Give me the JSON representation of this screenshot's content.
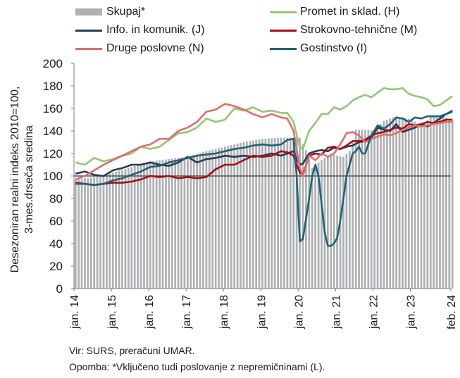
{
  "legend": [
    {
      "key": "skupaj",
      "label": "Skupaj*",
      "color": "#aeb0b3",
      "kind": "bar"
    },
    {
      "key": "promet",
      "label": "Promet in sklad. (H)",
      "color": "#93c674",
      "kind": "line"
    },
    {
      "key": "info",
      "label": "Info. in komunik. (J)",
      "color": "#273a55",
      "kind": "line"
    },
    {
      "key": "strok",
      "label": "Strokovno-tehnične (M)",
      "color": "#a60d15",
      "kind": "line"
    },
    {
      "key": "druge",
      "label": "Druge poslovne (N)",
      "color": "#e06d6e",
      "kind": "line"
    },
    {
      "key": "gost",
      "label": "Gostinstvo (I)",
      "color": "#1f6178",
      "kind": "line"
    }
  ],
  "ylabel_line1": "Desezoniran realni indeks 2010=100,",
  "ylabel_line2": "3-mes.drseča sredina",
  "footer": {
    "source": "Vir: SURS, preračuni UMAR.",
    "note": "Opomba: *Vključeno tudi poslovanje z nepremičninami (L)."
  },
  "chart_data": {
    "type": "bar+line",
    "x_start": "jan. 14",
    "x_end": "feb. 24",
    "x_ticks": [
      "jan. 14",
      "jan. 15",
      "jan. 16",
      "jan. 17",
      "jan. 18",
      "jan. 19",
      "jan. 20",
      "jan. 21",
      "jan. 22",
      "jan. 23",
      "feb. 24"
    ],
    "ylim": [
      0,
      200
    ],
    "yticks": [
      0,
      20,
      40,
      60,
      80,
      100,
      120,
      140,
      160,
      180,
      200
    ],
    "reference_line": 100,
    "bar_series": {
      "name": "Skupaj*",
      "anchors": [
        [
          0,
          97
        ],
        [
          6,
          99
        ],
        [
          12,
          103
        ],
        [
          18,
          108
        ],
        [
          24,
          113
        ],
        [
          30,
          115
        ],
        [
          36,
          117
        ],
        [
          42,
          122
        ],
        [
          48,
          126
        ],
        [
          54,
          130
        ],
        [
          60,
          133
        ],
        [
          66,
          134
        ],
        [
          72,
          134
        ],
        [
          74,
          123
        ],
        [
          76,
          107
        ],
        [
          78,
          112
        ],
        [
          80,
          116
        ],
        [
          82,
          120
        ],
        [
          84,
          118
        ],
        [
          86,
          117
        ],
        [
          88,
          122
        ],
        [
          90,
          141
        ],
        [
          93,
          141
        ],
        [
          96,
          140
        ],
        [
          99,
          149
        ],
        [
          102,
          152
        ],
        [
          105,
          152
        ],
        [
          108,
          150
        ],
        [
          111,
          145
        ],
        [
          114,
          152
        ],
        [
          117,
          153
        ],
        [
          121,
          150
        ]
      ]
    },
    "series": [
      {
        "name": "Promet in sklad. (H)",
        "anchors": [
          [
            0,
            112
          ],
          [
            3,
            110
          ],
          [
            6,
            116
          ],
          [
            9,
            113
          ],
          [
            12,
            115
          ],
          [
            15,
            118
          ],
          [
            18,
            120
          ],
          [
            21,
            126
          ],
          [
            24,
            124
          ],
          [
            27,
            126
          ],
          [
            30,
            132
          ],
          [
            33,
            138
          ],
          [
            36,
            139
          ],
          [
            39,
            143
          ],
          [
            42,
            151
          ],
          [
            45,
            148
          ],
          [
            48,
            150
          ],
          [
            51,
            160
          ],
          [
            54,
            158
          ],
          [
            57,
            161
          ],
          [
            60,
            157
          ],
          [
            63,
            158
          ],
          [
            66,
            156
          ],
          [
            68,
            156
          ],
          [
            70,
            148
          ],
          [
            72,
            125
          ],
          [
            73,
            124
          ],
          [
            75,
            140
          ],
          [
            77,
            147
          ],
          [
            79,
            155
          ],
          [
            81,
            155
          ],
          [
            83,
            161
          ],
          [
            85,
            159
          ],
          [
            87,
            162
          ],
          [
            89,
            167
          ],
          [
            91,
            170
          ],
          [
            93,
            172
          ],
          [
            95,
            170
          ],
          [
            97,
            174
          ],
          [
            99,
            178
          ],
          [
            101,
            177
          ],
          [
            103,
            177
          ],
          [
            105,
            178
          ],
          [
            107,
            173
          ],
          [
            109,
            171
          ],
          [
            111,
            170
          ],
          [
            113,
            168
          ],
          [
            115,
            162
          ],
          [
            117,
            163
          ],
          [
            119,
            167
          ],
          [
            121,
            171
          ]
        ]
      },
      {
        "name": "Info. in komunik. (J)",
        "anchors": [
          [
            0,
            102
          ],
          [
            3,
            104
          ],
          [
            6,
            101
          ],
          [
            9,
            100
          ],
          [
            12,
            105
          ],
          [
            15,
            107
          ],
          [
            18,
            110
          ],
          [
            21,
            110
          ],
          [
            24,
            112
          ],
          [
            27,
            110
          ],
          [
            30,
            109
          ],
          [
            33,
            112
          ],
          [
            36,
            117
          ],
          [
            39,
            112
          ],
          [
            42,
            115
          ],
          [
            45,
            116
          ],
          [
            48,
            118
          ],
          [
            51,
            117
          ],
          [
            54,
            118
          ],
          [
            57,
            117
          ],
          [
            60,
            118
          ],
          [
            63,
            120
          ],
          [
            66,
            118
          ],
          [
            68,
            120
          ],
          [
            70,
            122
          ],
          [
            71,
            115
          ],
          [
            72,
            110
          ],
          [
            73,
            111
          ],
          [
            75,
            120
          ],
          [
            77,
            122
          ],
          [
            79,
            123
          ],
          [
            81,
            122
          ],
          [
            83,
            125
          ],
          [
            85,
            124
          ],
          [
            87,
            126
          ],
          [
            89,
            127
          ],
          [
            91,
            130
          ],
          [
            93,
            131
          ],
          [
            95,
            134
          ],
          [
            97,
            143
          ],
          [
            99,
            141
          ],
          [
            101,
            140
          ],
          [
            103,
            146
          ],
          [
            105,
            139
          ],
          [
            107,
            141
          ],
          [
            109,
            143
          ],
          [
            111,
            146
          ],
          [
            113,
            144
          ],
          [
            115,
            147
          ],
          [
            117,
            151
          ],
          [
            119,
            155
          ],
          [
            121,
            158
          ]
        ]
      },
      {
        "name": "Strokovno-tehnične (M)",
        "anchors": [
          [
            0,
            94
          ],
          [
            3,
            93
          ],
          [
            6,
            92
          ],
          [
            9,
            93
          ],
          [
            12,
            94
          ],
          [
            15,
            94
          ],
          [
            18,
            95
          ],
          [
            21,
            97
          ],
          [
            24,
            100
          ],
          [
            27,
            99
          ],
          [
            30,
            100
          ],
          [
            33,
            98
          ],
          [
            36,
            99
          ],
          [
            39,
            98
          ],
          [
            42,
            99
          ],
          [
            45,
            106
          ],
          [
            48,
            110
          ],
          [
            51,
            110
          ],
          [
            54,
            114
          ],
          [
            57,
            118
          ],
          [
            60,
            117
          ],
          [
            63,
            118
          ],
          [
            66,
            122
          ],
          [
            68,
            121
          ],
          [
            70,
            118
          ],
          [
            72,
            103
          ],
          [
            73,
            101
          ],
          [
            75,
            118
          ],
          [
            77,
            120
          ],
          [
            79,
            119
          ],
          [
            81,
            125
          ],
          [
            83,
            126
          ],
          [
            85,
            124
          ],
          [
            87,
            127
          ],
          [
            89,
            131
          ],
          [
            91,
            131
          ],
          [
            93,
            132
          ],
          [
            95,
            136
          ],
          [
            97,
            138
          ],
          [
            99,
            139
          ],
          [
            101,
            141
          ],
          [
            103,
            143
          ],
          [
            105,
            142
          ],
          [
            107,
            146
          ],
          [
            109,
            145
          ],
          [
            111,
            146
          ],
          [
            113,
            148
          ],
          [
            115,
            147
          ],
          [
            117,
            148
          ],
          [
            119,
            150
          ],
          [
            121,
            150
          ]
        ]
      },
      {
        "name": "Druge poslovne (N)",
        "anchors": [
          [
            0,
            97
          ],
          [
            3,
            100
          ],
          [
            6,
            105
          ],
          [
            9,
            110
          ],
          [
            12,
            114
          ],
          [
            15,
            118
          ],
          [
            18,
            122
          ],
          [
            21,
            126
          ],
          [
            24,
            128
          ],
          [
            27,
            133
          ],
          [
            30,
            133
          ],
          [
            33,
            140
          ],
          [
            36,
            143
          ],
          [
            39,
            148
          ],
          [
            42,
            157
          ],
          [
            45,
            159
          ],
          [
            48,
            164
          ],
          [
            51,
            162
          ],
          [
            54,
            159
          ],
          [
            57,
            155
          ],
          [
            60,
            152
          ],
          [
            63,
            155
          ],
          [
            66,
            152
          ],
          [
            68,
            151
          ],
          [
            70,
            140
          ],
          [
            72,
            107
          ],
          [
            73,
            100
          ],
          [
            75,
            118
          ],
          [
            77,
            114
          ],
          [
            79,
            120
          ],
          [
            81,
            117
          ],
          [
            83,
            120
          ],
          [
            85,
            128
          ],
          [
            87,
            138
          ],
          [
            89,
            139
          ],
          [
            91,
            136
          ],
          [
            93,
            130
          ],
          [
            95,
            133
          ],
          [
            97,
            135
          ],
          [
            99,
            137
          ],
          [
            101,
            136
          ],
          [
            103,
            138
          ],
          [
            105,
            141
          ],
          [
            107,
            143
          ],
          [
            109,
            145
          ],
          [
            111,
            144
          ],
          [
            113,
            145
          ],
          [
            115,
            146
          ],
          [
            117,
            147
          ],
          [
            119,
            148
          ],
          [
            121,
            148
          ]
        ]
      },
      {
        "name": "Gostinstvo (I)",
        "anchors": [
          [
            0,
            93
          ],
          [
            3,
            93
          ],
          [
            6,
            92
          ],
          [
            9,
            93
          ],
          [
            12,
            96
          ],
          [
            15,
            98
          ],
          [
            18,
            101
          ],
          [
            21,
            104
          ],
          [
            24,
            108
          ],
          [
            27,
            109
          ],
          [
            30,
            112
          ],
          [
            33,
            114
          ],
          [
            36,
            116
          ],
          [
            39,
            118
          ],
          [
            42,
            119
          ],
          [
            45,
            120
          ],
          [
            48,
            122
          ],
          [
            51,
            124
          ],
          [
            54,
            125
          ],
          [
            57,
            127
          ],
          [
            60,
            128
          ],
          [
            63,
            127
          ],
          [
            66,
            128
          ],
          [
            68,
            132
          ],
          [
            70,
            133
          ],
          [
            71,
            100
          ],
          [
            72,
            42
          ],
          [
            73,
            44
          ],
          [
            74,
            62
          ],
          [
            75,
            80
          ],
          [
            76,
            100
          ],
          [
            77,
            110
          ],
          [
            78,
            100
          ],
          [
            79,
            75
          ],
          [
            80,
            50
          ],
          [
            81,
            38
          ],
          [
            82,
            38
          ],
          [
            83,
            40
          ],
          [
            84,
            45
          ],
          [
            85,
            60
          ],
          [
            86,
            80
          ],
          [
            87,
            100
          ],
          [
            88,
            110
          ],
          [
            89,
            120
          ],
          [
            90,
            122
          ],
          [
            91,
            126
          ],
          [
            92,
            120
          ],
          [
            93,
            120
          ],
          [
            94,
            128
          ],
          [
            95,
            136
          ],
          [
            97,
            145
          ],
          [
            99,
            142
          ],
          [
            101,
            146
          ],
          [
            103,
            152
          ],
          [
            105,
            151
          ],
          [
            107,
            148
          ],
          [
            109,
            152
          ],
          [
            111,
            151
          ],
          [
            113,
            153
          ],
          [
            115,
            153
          ],
          [
            117,
            153
          ],
          [
            119,
            155
          ],
          [
            121,
            157
          ]
        ]
      }
    ]
  }
}
